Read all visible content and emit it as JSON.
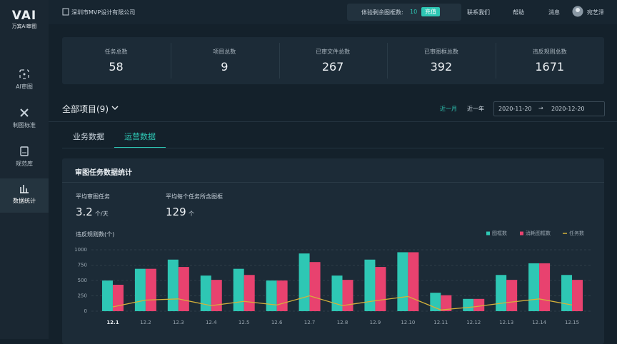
{
  "sidebar": {
    "logo": "VAI",
    "logo_sub": "万宾AI审图",
    "items": [
      "AI审图",
      "制图标准",
      "规范库",
      "数据统计"
    ]
  },
  "header": {
    "company": "深圳市MVP设计有限公司",
    "trial_label": "体验剩余图框数:",
    "trial_count": 10,
    "recharge": "充值",
    "links": [
      "联系我们",
      "帮助",
      "消息"
    ],
    "user": "宛艺泽"
  },
  "stats": [
    {
      "label": "任务总数",
      "value": 58
    },
    {
      "label": "项目总数",
      "value": 9
    },
    {
      "label": "已审文件总数",
      "value": 267
    },
    {
      "label": "已审图框总数",
      "value": 392
    },
    {
      "label": "违反规则总数",
      "value": 1671
    }
  ],
  "filter": {
    "project": "全部项目(9)",
    "ranges": [
      "近一月",
      "近一年"
    ],
    "date_from": "2020-11-20",
    "date_to": "2020-12-20"
  },
  "tabs": [
    "业务数据",
    "运营数据"
  ],
  "panel": {
    "title": "审图任务数据统计",
    "metrics": [
      {
        "label": "平均审图任务",
        "value": 3.2,
        "unit": "个/天"
      },
      {
        "label": "平均每个任务所含图框",
        "value": 129,
        "unit": "个"
      }
    ]
  },
  "chart_data": {
    "type": "bar",
    "y_label": "违反规则数(个)",
    "categories": [
      "12.1",
      "12.2",
      "12.3",
      "12.4",
      "12.5",
      "12.6",
      "12.7",
      "12.8",
      "12.9",
      "12.10",
      "12.11",
      "12.12",
      "12.13",
      "12.14",
      "12.15"
    ],
    "series": [
      {
        "name": "图框数",
        "color": "#2ec7b4",
        "values": [
          500,
          690,
          840,
          580,
          690,
          500,
          940,
          580,
          840,
          960,
          300,
          200,
          590,
          780,
          590
        ]
      },
      {
        "name": "消耗图框数",
        "color": "#e8426f",
        "values": [
          430,
          690,
          720,
          510,
          590,
          500,
          800,
          510,
          720,
          960,
          260,
          200,
          510,
          780,
          510
        ]
      },
      {
        "name": "任务数",
        "type": "line",
        "color": "#d4b13a",
        "values": [
          70,
          180,
          200,
          90,
          160,
          100,
          250,
          90,
          170,
          240,
          20,
          70,
          140,
          200,
          100
        ]
      }
    ],
    "ylim": [
      0,
      1000
    ],
    "yticks": [
      0,
      250,
      500,
      750,
      1000
    ],
    "grid": true,
    "legend": "top-right"
  }
}
